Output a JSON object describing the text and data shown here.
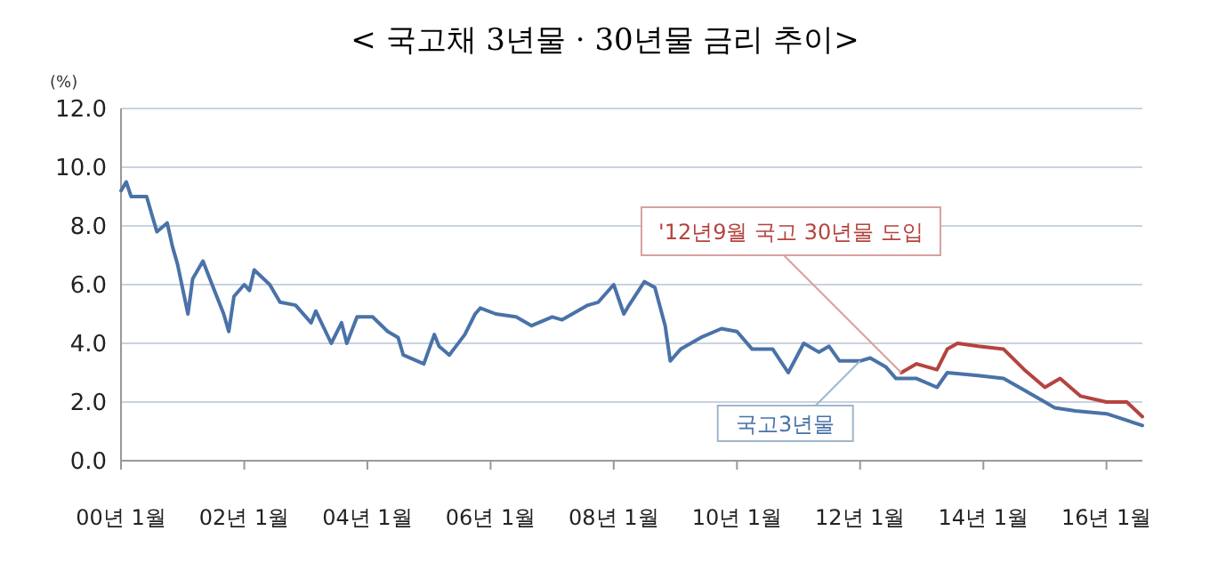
{
  "chart_data": {
    "type": "line",
    "title": "< 국고채 3년물 · 30년물 금리 추이>",
    "ylabel": "(%)",
    "xlim": [
      "2000-01",
      "2016-08"
    ],
    "xticks": [
      {
        "value": "2000-01",
        "label": "00년 1월"
      },
      {
        "value": "2002-01",
        "label": "02년 1월"
      },
      {
        "value": "2004-01",
        "label": "04년 1월"
      },
      {
        "value": "2006-01",
        "label": "06년 1월"
      },
      {
        "value": "2008-01",
        "label": "08년 1월"
      },
      {
        "value": "2010-01",
        "label": "10년 1월"
      },
      {
        "value": "2012-01",
        "label": "12년 1월"
      },
      {
        "value": "2014-01",
        "label": "14년 1월"
      },
      {
        "value": "2016-01",
        "label": "16년 1월"
      }
    ],
    "ylim": [
      0,
      12
    ],
    "yticks": [
      {
        "value": 0,
        "label": "0.0"
      },
      {
        "value": 2,
        "label": "2.0"
      },
      {
        "value": 4,
        "label": "4.0"
      },
      {
        "value": 6,
        "label": "6.0"
      },
      {
        "value": 8,
        "label": "8.0"
      },
      {
        "value": 10,
        "label": "10.0"
      },
      {
        "value": 12,
        "label": "12.0"
      }
    ],
    "grid": "y",
    "series": [
      {
        "name": "국고3년물",
        "color": "#4a72a8",
        "x": [
          "2000-01",
          "2000-02",
          "2000-03",
          "2000-06",
          "2000-07",
          "2000-08",
          "2000-10",
          "2000-11",
          "2000-12",
          "2001-02",
          "2001-03",
          "2001-05",
          "2001-07",
          "2001-09",
          "2001-10",
          "2001-11",
          "2002-01",
          "2002-02",
          "2002-03",
          "2002-06",
          "2002-08",
          "2002-11",
          "2003-02",
          "2003-03",
          "2003-06",
          "2003-08",
          "2003-09",
          "2003-11",
          "2004-02",
          "2004-05",
          "2004-07",
          "2004-08",
          "2004-12",
          "2005-02",
          "2005-03",
          "2005-05",
          "2005-08",
          "2005-10",
          "2005-11",
          "2006-02",
          "2006-06",
          "2006-09",
          "2007-01",
          "2007-03",
          "2007-08",
          "2007-10",
          "2008-01",
          "2008-03",
          "2008-04",
          "2008-07",
          "2008-09",
          "2008-11",
          "2008-12",
          "2009-02",
          "2009-06",
          "2009-10",
          "2010-01",
          "2010-04",
          "2010-08",
          "2010-11",
          "2011-02",
          "2011-05",
          "2011-07",
          "2011-09",
          "2012-01",
          "2012-03",
          "2012-06",
          "2012-08",
          "2012-12",
          "2013-04",
          "2013-06",
          "2013-12",
          "2014-05",
          "2014-09",
          "2015-01",
          "2015-03",
          "2015-07",
          "2016-01",
          "2016-08"
        ],
        "values": [
          9.2,
          9.5,
          9.0,
          9.0,
          8.4,
          7.8,
          8.1,
          7.3,
          6.7,
          5.0,
          6.2,
          6.8,
          5.9,
          5.0,
          4.4,
          5.6,
          6.0,
          5.8,
          6.5,
          6.0,
          5.4,
          5.3,
          4.7,
          5.1,
          4.0,
          4.7,
          4.0,
          4.9,
          4.9,
          4.4,
          4.2,
          3.6,
          3.3,
          4.3,
          3.9,
          3.6,
          4.3,
          5.0,
          5.2,
          5.0,
          4.9,
          4.6,
          4.9,
          4.8,
          5.3,
          5.4,
          6.0,
          5.0,
          5.3,
          6.1,
          5.9,
          4.6,
          3.4,
          3.8,
          4.2,
          4.5,
          4.4,
          3.8,
          3.8,
          3.0,
          4.0,
          3.7,
          3.9,
          3.4,
          3.4,
          3.5,
          3.2,
          2.8,
          2.8,
          2.5,
          3.0,
          2.9,
          2.8,
          2.4,
          2.0,
          1.8,
          1.7,
          1.6,
          1.2
        ]
      },
      {
        "color": "#b5433f",
        "x": [
          "2012-09",
          "2012-12",
          "2013-04",
          "2013-06",
          "2013-08",
          "2013-12",
          "2014-05",
          "2014-09",
          "2015-01",
          "2015-04",
          "2015-08",
          "2016-01",
          "2016-05",
          "2016-08"
        ],
        "values": [
          3.0,
          3.3,
          3.1,
          3.8,
          4.0,
          3.9,
          3.8,
          3.1,
          2.5,
          2.8,
          2.2,
          2.0,
          2.0,
          1.5
        ]
      }
    ],
    "annotations": [
      {
        "text": "'12년9월 국고 30년물 도입",
        "x": "2012-09",
        "y": 3.0
      }
    ]
  }
}
